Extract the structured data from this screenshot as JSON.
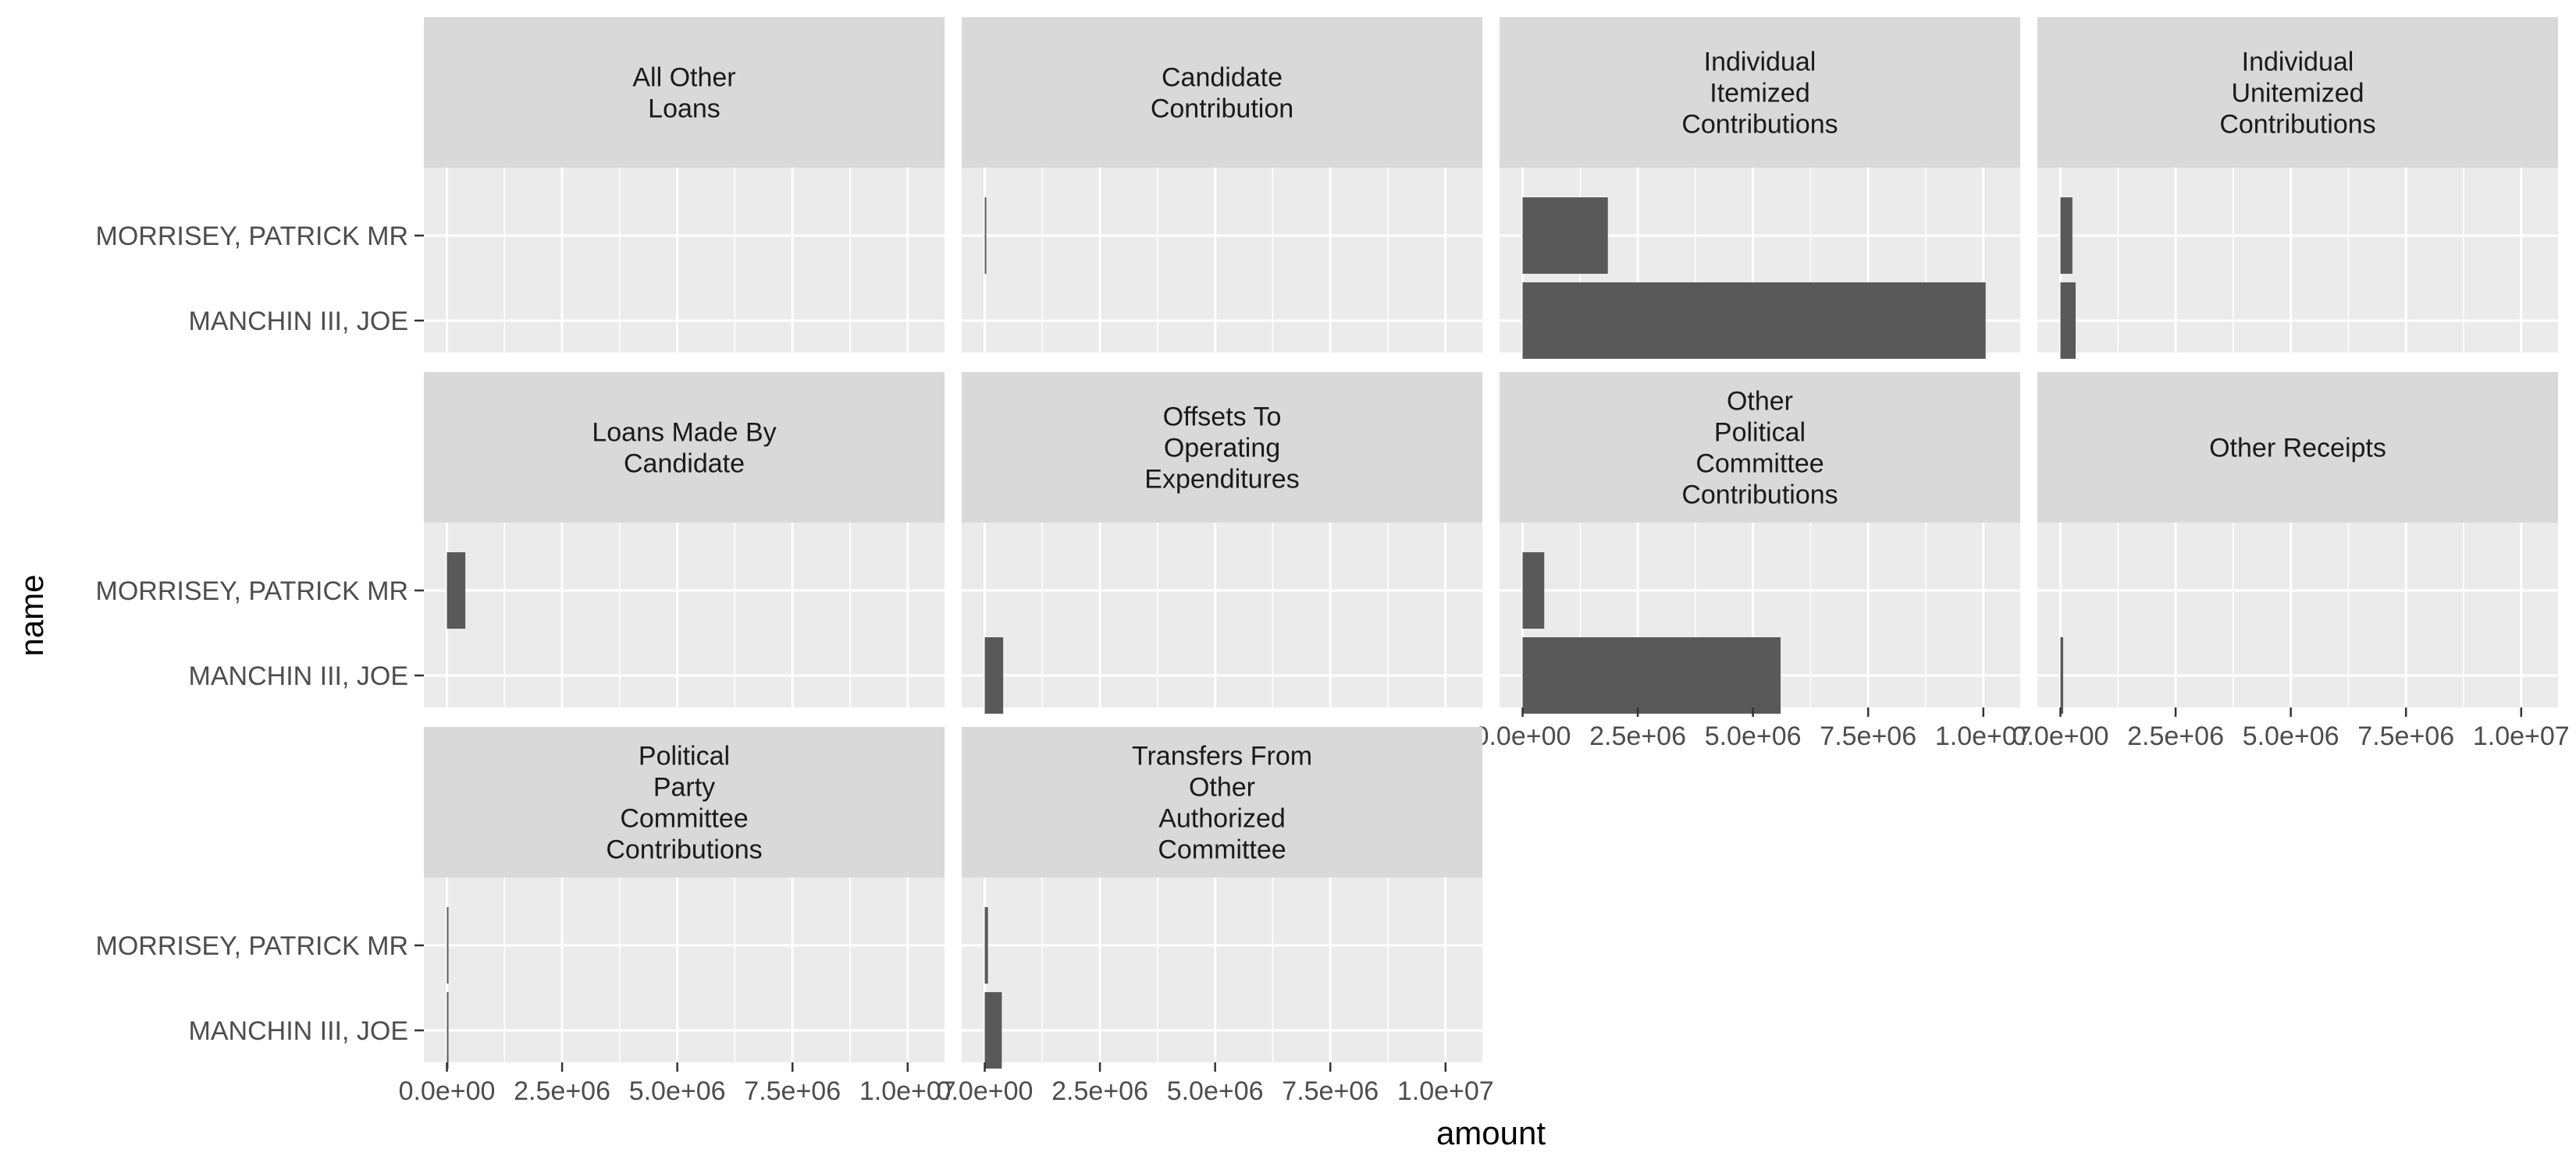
{
  "chart_data": {
    "type": "bar",
    "orientation": "horizontal",
    "faceted": true,
    "facet_columns": 4,
    "xlabel": "amount",
    "ylabel": "name",
    "xlim": [
      -500000,
      10800000
    ],
    "x_ticks": [
      0,
      2500000,
      5000000,
      7500000,
      10000000
    ],
    "x_tick_labels": [
      "0.0e+00",
      "2.5e+06",
      "5.0e+06",
      "7.5e+06",
      "1.0e+07"
    ],
    "categories": [
      "MORRISEY, PATRICK MR",
      "MANCHIN III, JOE"
    ],
    "grid": true,
    "colors": {
      "bar": "#595959",
      "panel_background": "#EBEBEB",
      "strip_background": "#D9D9D9",
      "grid_line": "#FFFFFF",
      "axis_text": "#4D4D4D",
      "title_text": "#000000",
      "strip_text": "#1A1A1A"
    },
    "facets": [
      {
        "title": [
          "All Other",
          "Loans"
        ],
        "values": [
          0,
          0
        ]
      },
      {
        "title": [
          "Candidate",
          "Contribution"
        ],
        "values": [
          15000,
          0
        ]
      },
      {
        "title": [
          "Individual",
          "Itemized",
          "Contributions"
        ],
        "values": [
          1850000,
          10050000
        ]
      },
      {
        "title": [
          "Individual",
          "Unitemized",
          "Contributions"
        ],
        "values": [
          260000,
          330000
        ]
      },
      {
        "title": [
          "Loans Made By",
          "Candidate"
        ],
        "values": [
          400000,
          0
        ]
      },
      {
        "title": [
          "Offsets To",
          "Operating",
          "Expenditures"
        ],
        "values": [
          0,
          400000
        ]
      },
      {
        "title": [
          "Other",
          "Political",
          "Committee",
          "Contributions"
        ],
        "values": [
          470000,
          5600000
        ]
      },
      {
        "title": [
          "Other Receipts"
        ],
        "values": [
          0,
          60000
        ]
      },
      {
        "title": [
          "Political",
          "Party",
          "Committee",
          "Contributions"
        ],
        "values": [
          30000,
          30000
        ]
      },
      {
        "title": [
          "Transfers From",
          "Other",
          "Authorized",
          "Committee"
        ],
        "values": [
          70000,
          370000
        ]
      }
    ]
  }
}
